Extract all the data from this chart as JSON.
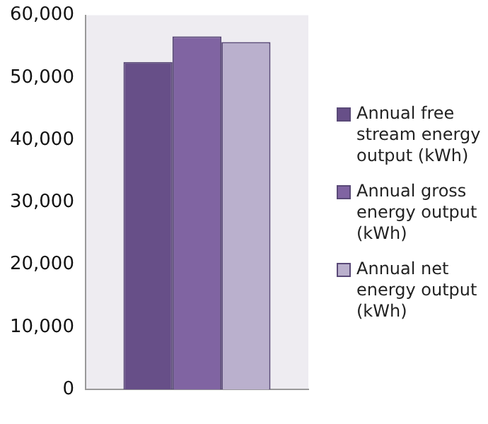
{
  "chart_data": {
    "type": "bar",
    "categories": [
      null
    ],
    "series": [
      {
        "name": "Annual free stream energy output (kWh)",
        "color": "#674f88",
        "values": [
          52500
        ]
      },
      {
        "name": "Annual gross energy output (kWh)",
        "color": "#8064a2",
        "values": [
          56600
        ]
      },
      {
        "name": "Annual net energy output (kWh)",
        "color": "#bab0cd",
        "values": [
          55700
        ]
      }
    ],
    "ylim": [
      0,
      60000
    ],
    "yticks": [
      0,
      {
        "value": 10000,
        "label": "10,000"
      },
      {
        "value": 20000,
        "label": "20,000"
      },
      {
        "value": 30000,
        "label": "30,000"
      },
      {
        "value": 40000,
        "label": "40,000"
      },
      {
        "value": 50000,
        "label": "50,000"
      },
      {
        "value": 60000,
        "label": "60,000"
      }
    ],
    "grid": false,
    "legend": "right"
  }
}
